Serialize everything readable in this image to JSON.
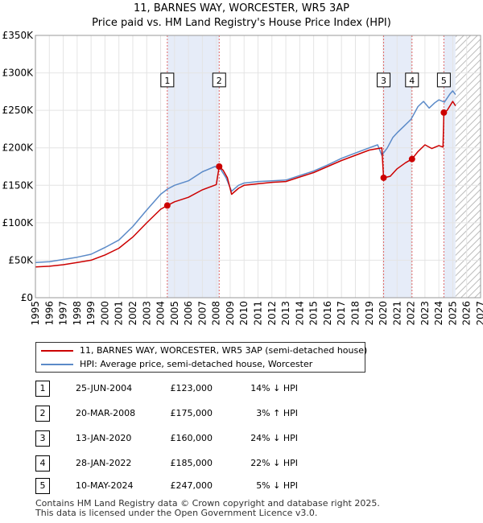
{
  "chart_data": {
    "type": "line",
    "title": "11, BARNES WAY, WORCESTER, WR5 3AP",
    "subtitle": "Price paid vs. HM Land Registry's House Price Index (HPI)",
    "xlabel": "",
    "ylabel": "",
    "xlim": [
      1995,
      2027
    ],
    "ylim": [
      0,
      350000
    ],
    "y_ticks": [
      0,
      50000,
      100000,
      150000,
      200000,
      250000,
      300000,
      350000
    ],
    "y_tick_labels": [
      "£0",
      "£50K",
      "£100K",
      "£150K",
      "£200K",
      "£250K",
      "£300K",
      "£350K"
    ],
    "x_ticks": [
      1995,
      1996,
      1997,
      1998,
      1999,
      2000,
      2001,
      2002,
      2003,
      2004,
      2005,
      2006,
      2007,
      2008,
      2009,
      2010,
      2011,
      2012,
      2013,
      2014,
      2015,
      2016,
      2017,
      2018,
      2019,
      2020,
      2021,
      2022,
      2023,
      2024,
      2025,
      2026,
      2027
    ],
    "forecast_start": 2025.2,
    "series": [
      {
        "name": "HPI: Average price, semi-detached house, Worcester",
        "color": "#5b8ac8",
        "points": [
          [
            1995.0,
            47000
          ],
          [
            1996.0,
            48000
          ],
          [
            1997.0,
            51000
          ],
          [
            1998.0,
            54000
          ],
          [
            1999.0,
            58000
          ],
          [
            2000.0,
            67000
          ],
          [
            2001.0,
            77000
          ],
          [
            2002.0,
            95000
          ],
          [
            2003.0,
            117000
          ],
          [
            2004.0,
            138000
          ],
          [
            2004.5,
            145000
          ],
          [
            2005.0,
            150000
          ],
          [
            2006.0,
            156000
          ],
          [
            2007.0,
            168000
          ],
          [
            2007.9,
            175000
          ],
          [
            2008.3,
            172000
          ],
          [
            2008.7,
            160000
          ],
          [
            2009.1,
            142000
          ],
          [
            2009.6,
            150000
          ],
          [
            2010.0,
            153000
          ],
          [
            2011.0,
            155000
          ],
          [
            2012.0,
            156000
          ],
          [
            2013.0,
            157000
          ],
          [
            2014.0,
            163000
          ],
          [
            2015.0,
            169000
          ],
          [
            2016.0,
            177000
          ],
          [
            2017.0,
            186000
          ],
          [
            2018.0,
            193000
          ],
          [
            2019.0,
            200000
          ],
          [
            2019.6,
            204000
          ],
          [
            2019.9,
            190000
          ],
          [
            2020.3,
            200000
          ],
          [
            2020.7,
            214000
          ],
          [
            2021.0,
            220000
          ],
          [
            2021.5,
            229000
          ],
          [
            2022.0,
            238000
          ],
          [
            2022.5,
            255000
          ],
          [
            2022.9,
            262000
          ],
          [
            2023.3,
            253000
          ],
          [
            2023.7,
            260000
          ],
          [
            2024.0,
            264000
          ],
          [
            2024.4,
            261000
          ],
          [
            2024.8,
            272000
          ],
          [
            2025.0,
            276000
          ],
          [
            2025.2,
            271000
          ]
        ]
      },
      {
        "name": "11, BARNES WAY, WORCESTER, WR5 3AP (semi-detached house)",
        "color": "#cc0000",
        "points": [
          [
            1995.0,
            41000
          ],
          [
            1996.0,
            42000
          ],
          [
            1997.0,
            44000
          ],
          [
            1998.0,
            47000
          ],
          [
            1999.0,
            50000
          ],
          [
            2000.0,
            57000
          ],
          [
            2001.0,
            66000
          ],
          [
            2002.0,
            81000
          ],
          [
            2003.0,
            100000
          ],
          [
            2004.0,
            118000
          ],
          [
            2004.48,
            123000
          ],
          [
            2005.0,
            128000
          ],
          [
            2006.0,
            134000
          ],
          [
            2007.0,
            144000
          ],
          [
            2008.0,
            151000
          ],
          [
            2008.21,
            175000
          ],
          [
            2008.5,
            170000
          ],
          [
            2008.8,
            160000
          ],
          [
            2009.1,
            138000
          ],
          [
            2009.6,
            146000
          ],
          [
            2010.0,
            150000
          ],
          [
            2011.0,
            152000
          ],
          [
            2012.0,
            154000
          ],
          [
            2013.0,
            155000
          ],
          [
            2014.0,
            161000
          ],
          [
            2015.0,
            167000
          ],
          [
            2016.0,
            175000
          ],
          [
            2017.0,
            183000
          ],
          [
            2018.0,
            190000
          ],
          [
            2019.0,
            197000
          ],
          [
            2019.9,
            200000
          ],
          [
            2020.03,
            160000
          ],
          [
            2020.5,
            162000
          ],
          [
            2021.0,
            172000
          ],
          [
            2021.6,
            180000
          ],
          [
            2022.07,
            185000
          ],
          [
            2022.5,
            195000
          ],
          [
            2023.0,
            204000
          ],
          [
            2023.5,
            199000
          ],
          [
            2024.0,
            203000
          ],
          [
            2024.3,
            201000
          ],
          [
            2024.36,
            247000
          ],
          [
            2024.6,
            250000
          ],
          [
            2025.0,
            262000
          ],
          [
            2025.2,
            256000
          ]
        ]
      }
    ],
    "transactions": [
      {
        "n": "1",
        "x": 2004.48,
        "price": 123000
      },
      {
        "n": "2",
        "x": 2008.21,
        "price": 175000
      },
      {
        "n": "3",
        "x": 2020.03,
        "price": 160000
      },
      {
        "n": "4",
        "x": 2022.07,
        "price": 185000
      },
      {
        "n": "5",
        "x": 2024.36,
        "price": 247000
      }
    ],
    "shaded_ranges": [
      [
        2004.48,
        2008.21
      ],
      [
        2020.03,
        2022.07
      ],
      [
        2024.36,
        2025.2
      ]
    ],
    "marker_label_y": 290000
  },
  "legend": {
    "property_label": "11, BARNES WAY, WORCESTER, WR5 3AP (semi-detached house)",
    "hpi_label": "HPI: Average price, semi-detached house, Worcester"
  },
  "transactions_table": [
    {
      "n": "1",
      "date": "25-JUN-2004",
      "price": "£123,000",
      "hpi": "14% ↓ HPI"
    },
    {
      "n": "2",
      "date": "20-MAR-2008",
      "price": "£175,000",
      "hpi": "3% ↑ HPI"
    },
    {
      "n": "3",
      "date": "13-JAN-2020",
      "price": "£160,000",
      "hpi": "24% ↓ HPI"
    },
    {
      "n": "4",
      "date": "28-JAN-2022",
      "price": "£185,000",
      "hpi": "22% ↓ HPI"
    },
    {
      "n": "5",
      "date": "10-MAY-2024",
      "price": "£247,000",
      "hpi": "5% ↓ HPI"
    }
  ],
  "footer": {
    "line1": "Contains HM Land Registry data © Crown copyright and database right 2025.",
    "line2": "This data is licensed under the Open Government Licence v3.0."
  }
}
